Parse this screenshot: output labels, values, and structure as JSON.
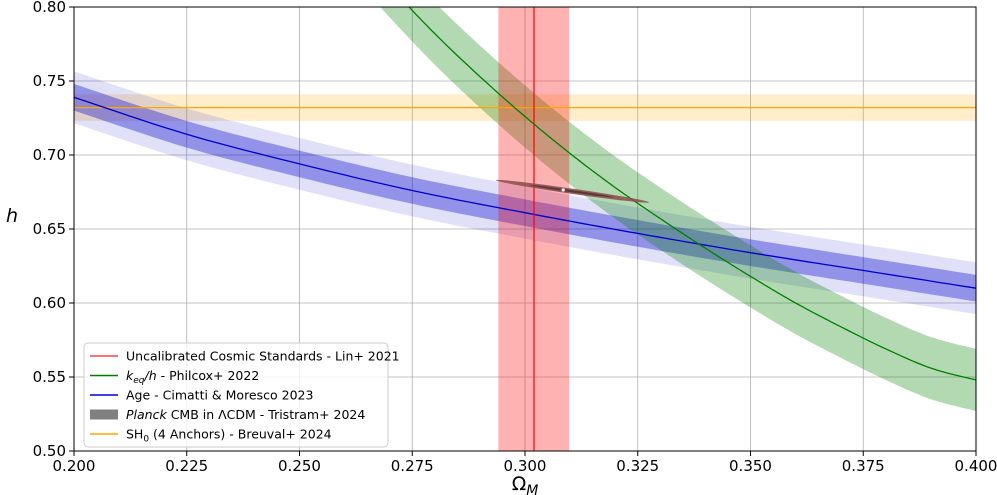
{
  "chart_data": {
    "type": "line",
    "xlabel": "Ω_M",
    "ylabel": "h",
    "xlim": [
      0.2,
      0.4
    ],
    "ylim": [
      0.5,
      0.8
    ],
    "grid": true,
    "legend_placement": "lower-left",
    "xticks": [
      "0.200",
      "0.225",
      "0.250",
      "0.275",
      "0.300",
      "0.325",
      "0.350",
      "0.375",
      "0.400"
    ],
    "yticks": [
      "0.50",
      "0.55",
      "0.60",
      "0.65",
      "0.70",
      "0.75",
      "0.80"
    ],
    "series": [
      {
        "name": "Uncalibrated Cosmic Standards - Lin+ 2021",
        "color": "#ff0000",
        "kind": "vertical-band",
        "x": 0.302,
        "band": [
          0.2941,
          0.3098
        ]
      },
      {
        "name": "k_eq/h - Philcox+ 2022",
        "color": "#008000",
        "kind": "curve-band",
        "x": [
          0.26,
          0.27,
          0.28,
          0.29,
          0.3,
          0.31,
          0.32,
          0.33,
          0.34,
          0.35,
          0.36,
          0.37,
          0.38,
          0.39,
          0.4
        ],
        "y": [
          0.848,
          0.814,
          0.782,
          0.753,
          0.726,
          0.701,
          0.678,
          0.657,
          0.637,
          0.618,
          0.6,
          0.584,
          0.569,
          0.556,
          0.548
        ],
        "band_halfwidth": 0.021
      },
      {
        "name": "Age - Cimatti & Moresco 2023",
        "color": "#0000cc",
        "kind": "curve-band",
        "x": [
          0.2,
          0.225,
          0.25,
          0.275,
          0.3,
          0.325,
          0.35,
          0.375,
          0.4
        ],
        "y": [
          0.739,
          0.714,
          0.694,
          0.676,
          0.661,
          0.647,
          0.634,
          0.622,
          0.61
        ],
        "band_inner_halfwidth": 0.009,
        "band_outer_halfwidth": 0.0175
      },
      {
        "name": "Planck CMB in ΛCDM - Tristram+ 2024",
        "color": "#808080",
        "kind": "ellipse",
        "center": [
          0.3105,
          0.6755
        ],
        "endpoints": [
          [
            0.2935,
            0.6835
          ],
          [
            0.3275,
            0.6685
          ]
        ]
      },
      {
        "name": "SH0ES (4 Anchors) - Breuval+ 2024",
        "color": "#ffa500",
        "kind": "horizontal-band",
        "y": 0.732,
        "band": [
          0.723,
          0.741
        ]
      }
    ],
    "legend": [
      {
        "text": "Uncalibrated Cosmic Standards - Lin+ 2021",
        "italic_prefix": "",
        "marker": "line",
        "color": "#ff4040"
      },
      {
        "text": " - Philcox+ 2022",
        "italic_prefix": "k_eq/h",
        "marker": "line",
        "color": "#008000"
      },
      {
        "text": "Age - Cimatti & Moresco 2023",
        "italic_prefix": "",
        "marker": "line",
        "color": "#0000cc"
      },
      {
        "text": " CMB in ΛCDM - Tristram+ 2024",
        "italic_prefix": "Planck",
        "marker": "patch",
        "color": "#808080"
      },
      {
        "text": "SH0ES (4 Anchors) - Breuval+ 2024",
        "italic_prefix": "",
        "marker": "line",
        "color": "#ffa500"
      }
    ]
  }
}
